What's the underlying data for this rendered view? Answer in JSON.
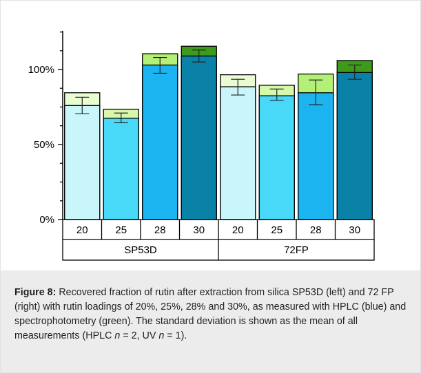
{
  "chart_data": {
    "type": "bar",
    "stacked": true,
    "y_ticks": [
      "0%",
      "50%",
      "100%"
    ],
    "ylim": [
      0,
      125
    ],
    "groups": [
      {
        "name": "SP53D",
        "categories": [
          "20",
          "25",
          "28",
          "30"
        ]
      },
      {
        "name": "72FP",
        "categories": [
          "20",
          "25",
          "28",
          "30"
        ]
      }
    ],
    "series": [
      {
        "measurement": "HPLC (blue)",
        "values": [
          76,
          67.5,
          103,
          109,
          88.5,
          82.5,
          84.5,
          98
        ],
        "colors": [
          "#c8f6fb",
          "#48d8f8",
          "#1cb4f0",
          "#0a82a8",
          "#c8f6fb",
          "#48d8f8",
          "#1cb4f0",
          "#0a82a8"
        ]
      },
      {
        "measurement": "spectrophotometry (green)",
        "totals": [
          84.5,
          73.5,
          110.5,
          115.5,
          96.5,
          89.5,
          97,
          106
        ],
        "colors": [
          "#eafcd2",
          "#d6f8a8",
          "#b4f078",
          "#3e9a1a",
          "#eafcd2",
          "#d6f8a8",
          "#b4f078",
          "#3e9a1a"
        ]
      }
    ],
    "error_bars": [
      {
        "center": 76,
        "low": 70.5,
        "high": 81.5
      },
      {
        "center": 67.5,
        "low": 64.5,
        "high": 71
      },
      {
        "center": 103,
        "low": 97.5,
        "high": 108
      },
      {
        "center": 109,
        "low": 105,
        "high": 113
      },
      {
        "center": 88.5,
        "low": 83,
        "high": 93.5
      },
      {
        "center": 82.5,
        "low": 79.5,
        "high": 87
      },
      {
        "center": 84.5,
        "low": 76.5,
        "high": 93
      },
      {
        "center": 98,
        "low": 93.5,
        "high": 103
      }
    ]
  },
  "caption": {
    "label": "Figure 8:",
    "text_1": " Recovered fraction of rutin after extraction from silica SP53D (left) and 72 FP (right) with rutin loadings of 20%, 25%, 28% and 30%, as measured with HPLC (blue) and spectrophotometry (green). The standard deviation is shown as the mean of all measurements (HPLC ",
    "n_symbol_1": "n",
    "text_2": " = 2, UV ",
    "n_symbol_2": "n",
    "text_3": " = 1)."
  }
}
